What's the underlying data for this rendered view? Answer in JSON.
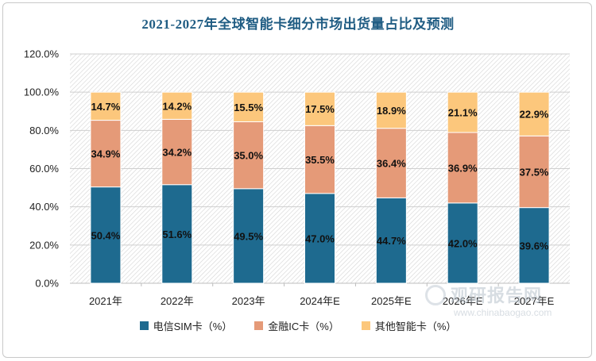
{
  "chart_data": {
    "type": "bar",
    "stacked": true,
    "title": "2021-2027年全球智能卡细分市场出货量占比及预测",
    "categories": [
      "2021年",
      "2022年",
      "2023年",
      "2024年E",
      "2025年E",
      "2026年E",
      "2027年E"
    ],
    "series": [
      {
        "name": "电信SIM卡（%）",
        "values": [
          50.4,
          51.6,
          49.5,
          47.0,
          44.7,
          42.0,
          39.6
        ],
        "labels": [
          "50.4%",
          "51.6%",
          "49.5%",
          "47.0%",
          "44.7%",
          "42.0%",
          "39.6%"
        ],
        "color": "#1e6a8f"
      },
      {
        "name": "金融IC卡（%）",
        "values": [
          34.9,
          34.2,
          35.0,
          35.5,
          36.4,
          36.9,
          37.5
        ],
        "labels": [
          "34.9%",
          "34.2%",
          "35.0%",
          "35.5%",
          "36.4%",
          "36.9%",
          "37.5%"
        ],
        "color": "#e59a78"
      },
      {
        "name": "其他智能卡（%）",
        "values": [
          14.7,
          14.2,
          15.5,
          17.5,
          18.9,
          21.1,
          22.9
        ],
        "labels": [
          "14.7%",
          "14.2%",
          "15.5%",
          "17.5%",
          "18.9%",
          "21.1%",
          "22.9%"
        ],
        "color": "#fcc77c"
      }
    ],
    "ylim": [
      0,
      120
    ],
    "yticks": [
      0,
      20,
      40,
      60,
      80,
      100,
      120
    ],
    "ytick_labels": [
      "0.0%",
      "20.0%",
      "40.0%",
      "60.0%",
      "80.0%",
      "100.0%",
      "120.0%"
    ],
    "xlabel": "",
    "ylabel": "",
    "grid": true,
    "legend_position": "bottom"
  },
  "watermark": {
    "main": "观研报告网",
    "sub": "www.chinabaogao.com"
  }
}
